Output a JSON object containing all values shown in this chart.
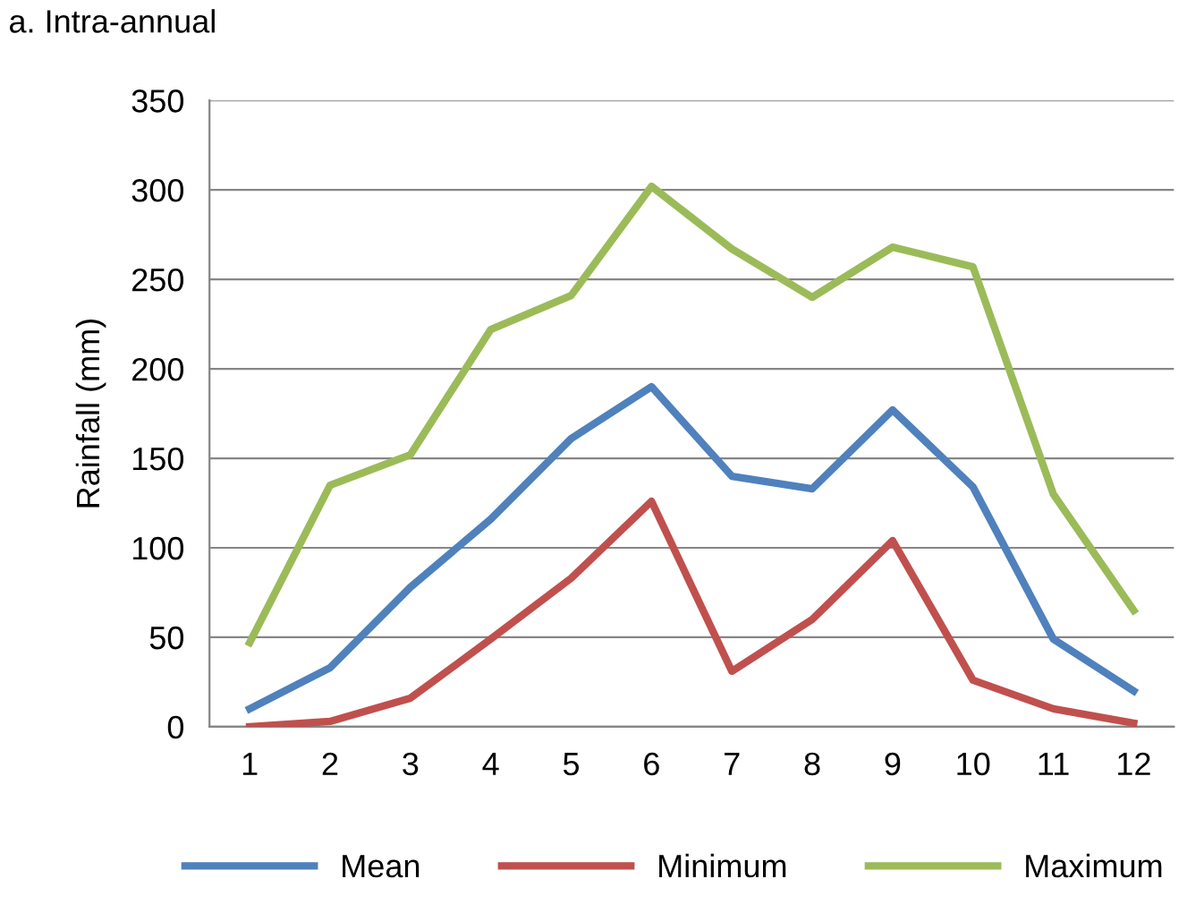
{
  "chart_data": {
    "type": "line",
    "title": "a. Intra-annual",
    "ylabel": "Rainfall (mm)",
    "categories": [
      "1",
      "2",
      "3",
      "4",
      "5",
      "6",
      "7",
      "8",
      "9",
      "10",
      "11",
      "12"
    ],
    "series": [
      {
        "name": "Mean",
        "color": "#4f81bd",
        "values": [
          10,
          33,
          78,
          116,
          161,
          190,
          140,
          133,
          177,
          134,
          49,
          20
        ]
      },
      {
        "name": "Minimum",
        "color": "#c0504d",
        "values": [
          0,
          3,
          16,
          49,
          83,
          126,
          31,
          60,
          104,
          26,
          10,
          2
        ]
      },
      {
        "name": "Maximum",
        "color": "#9bbb59",
        "values": [
          47,
          135,
          152,
          222,
          241,
          302,
          267,
          240,
          268,
          257,
          130,
          65
        ]
      }
    ],
    "ylim": [
      0,
      350
    ],
    "yticks": [
      0,
      50,
      100,
      150,
      200,
      250,
      300,
      350
    ],
    "grid": "y",
    "legend": "bottom",
    "marker": "none",
    "line_style": "solid"
  }
}
